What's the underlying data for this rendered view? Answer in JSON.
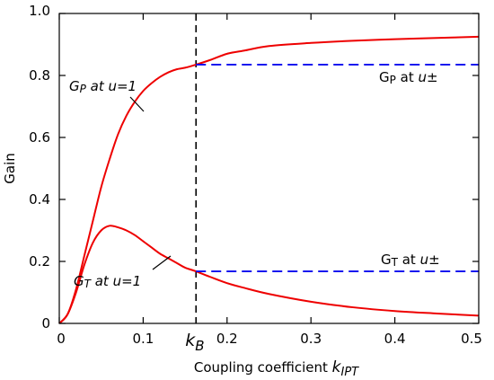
{
  "chart_data": {
    "type": "line",
    "xlabel": "Coupling coefficient k_IPT",
    "ylabel": "Gain",
    "xlim": [
      0,
      0.5
    ],
    "ylim": [
      0,
      1.0
    ],
    "xticks": [
      0,
      0.1,
      0.2,
      0.3,
      0.4,
      0.5
    ],
    "xtick_labels": [
      "0",
      "0.1",
      "0.2",
      "0.3",
      "0.4",
      "0.5"
    ],
    "yticks": [
      0,
      0.2,
      0.4,
      0.6,
      0.8,
      1.0
    ],
    "ytick_labels": [
      "0",
      "0.2",
      "0.4",
      "0.6",
      "0.8",
      "1.0"
    ],
    "grid": false,
    "kB": 0.163,
    "kB_label": "k_B",
    "series": [
      {
        "name": "GP at u=1",
        "color": "#ee0000",
        "style": "solid",
        "x": [
          0,
          0.01,
          0.02,
          0.03,
          0.04,
          0.05,
          0.06,
          0.07,
          0.08,
          0.09,
          0.1,
          0.11,
          0.12,
          0.13,
          0.14,
          0.15,
          0.163,
          0.18,
          0.2,
          0.22,
          0.25,
          0.3,
          0.35,
          0.4,
          0.45,
          0.5
        ],
        "y": [
          0,
          0.03,
          0.11,
          0.22,
          0.33,
          0.44,
          0.53,
          0.61,
          0.67,
          0.715,
          0.75,
          0.775,
          0.795,
          0.81,
          0.82,
          0.825,
          0.835,
          0.85,
          0.87,
          0.88,
          0.895,
          0.905,
          0.912,
          0.917,
          0.921,
          0.925
        ]
      },
      {
        "name": "GT at u=1",
        "color": "#ee0000",
        "style": "solid",
        "x": [
          0,
          0.01,
          0.02,
          0.03,
          0.04,
          0.05,
          0.06,
          0.07,
          0.08,
          0.09,
          0.1,
          0.11,
          0.12,
          0.13,
          0.14,
          0.15,
          0.163,
          0.18,
          0.2,
          0.22,
          0.25,
          0.3,
          0.35,
          0.4,
          0.45,
          0.5
        ],
        "y": [
          0,
          0.03,
          0.1,
          0.19,
          0.26,
          0.3,
          0.315,
          0.31,
          0.3,
          0.285,
          0.265,
          0.245,
          0.225,
          0.21,
          0.195,
          0.18,
          0.168,
          0.15,
          0.13,
          0.115,
          0.095,
          0.07,
          0.052,
          0.04,
          0.032,
          0.025
        ]
      },
      {
        "name": "GP at u±",
        "color": "#0000ee",
        "style": "dashed",
        "x": [
          0.163,
          0.5
        ],
        "y": [
          0.835,
          0.835
        ]
      },
      {
        "name": "GT at u±",
        "color": "#0000ee",
        "style": "dashed",
        "x": [
          0.163,
          0.5
        ],
        "y": [
          0.168,
          0.168
        ]
      }
    ],
    "annotations": [
      {
        "id": "gp-u1",
        "main": "G",
        "sub": "P",
        "rest": " at u=1",
        "rest_italic": true
      },
      {
        "id": "gt-u1",
        "main": "G",
        "sub": "T",
        "rest": " at u=1",
        "rest_italic": true
      },
      {
        "id": "gp-upm",
        "main": "G",
        "sub": "P",
        "rest": " at ",
        "var": "u±"
      },
      {
        "id": "gt-upm",
        "main": "G",
        "sub": "T",
        "rest": " at ",
        "var": "u±"
      }
    ]
  }
}
